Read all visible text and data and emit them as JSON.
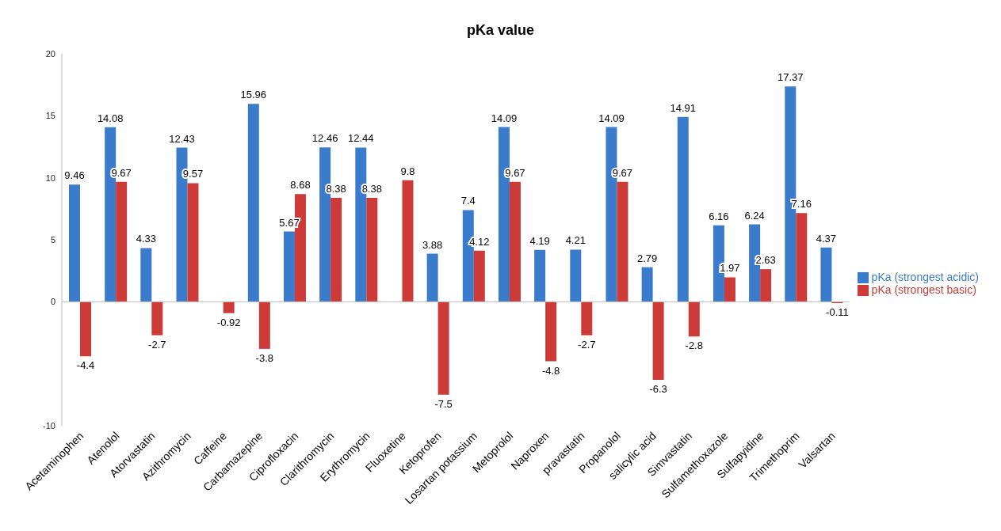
{
  "chart_data": {
    "type": "bar",
    "title": "pKa value",
    "categories": [
      "Acetaminophen",
      "Atenolol",
      "Atorvastatin",
      "Azithromycin",
      "Caffeine",
      "Carbamazepine",
      "Ciprofloxacin",
      "Clarithromycin",
      "Erythromycin",
      "Fluoxetine",
      "Ketoprofen",
      "Losartan potassium",
      "Metoprolol",
      "Naproxen",
      "pravastatin",
      "Propanolol",
      "salicylic acid",
      "Simvastatin",
      "Sulfamethoxazole",
      "Sulfapyidine",
      "Trimethoprim",
      "Valsartan"
    ],
    "series": [
      {
        "name": "pKa (strongest acidic)",
        "color": "#3b7bcc",
        "values": [
          9.46,
          14.08,
          4.33,
          12.43,
          null,
          15.96,
          5.67,
          12.46,
          12.44,
          null,
          3.88,
          7.4,
          14.09,
          4.19,
          4.21,
          14.09,
          2.79,
          14.91,
          6.16,
          6.24,
          17.37,
          4.37
        ]
      },
      {
        "name": "pKa (strongest basic)",
        "color": "#cc3b37",
        "values": [
          -4.4,
          9.67,
          -2.7,
          9.57,
          -0.92,
          -3.8,
          8.68,
          8.38,
          8.38,
          9.8,
          -7.5,
          4.12,
          9.67,
          -4.8,
          -2.7,
          9.67,
          -6.3,
          -2.8,
          1.97,
          2.63,
          7.16,
          -0.11
        ]
      }
    ],
    "ref_lines": [
      {
        "axis": "y",
        "value": 0,
        "color": "#bbbbbb"
      }
    ],
    "ylim": [
      -10,
      20
    ],
    "yticks": [
      -10,
      0,
      5,
      10,
      15,
      20
    ],
    "grid": false,
    "legend": "right",
    "data_labels": true
  }
}
